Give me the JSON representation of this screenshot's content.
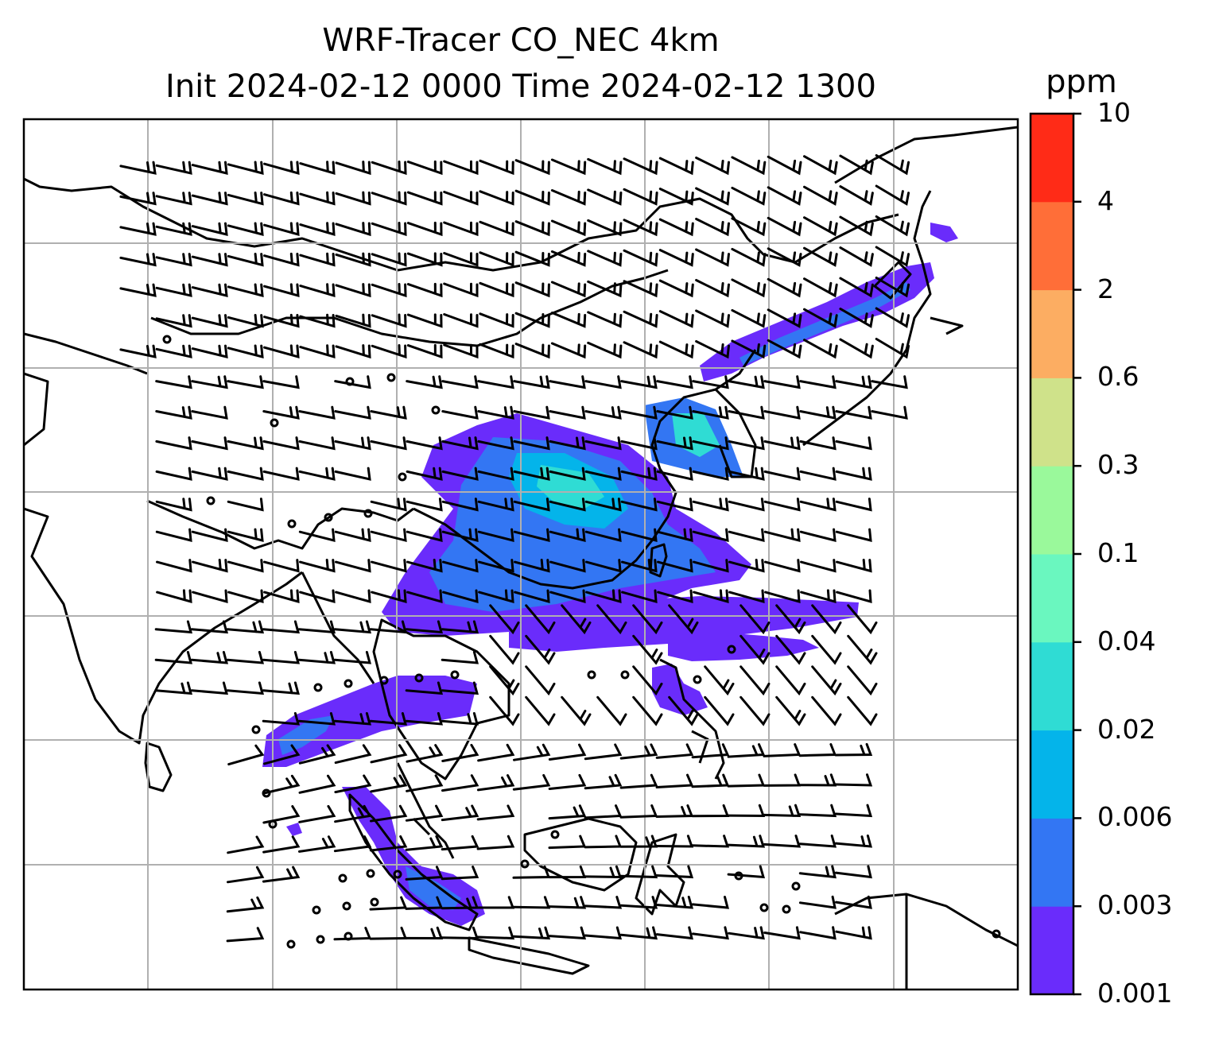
{
  "title": {
    "line1": "WRF-Tracer CO_NEC 4km",
    "line2": "Init 2024-02-12 0000 Time 2024-02-12 1300"
  },
  "colorbar": {
    "units": "ppm",
    "levels": [
      "0.001",
      "0.003",
      "0.006",
      "0.02",
      "0.04",
      "0.1",
      "0.3",
      "0.6",
      "2",
      "4",
      "10"
    ],
    "colors": [
      "#6a2cfb",
      "#3376f3",
      "#04b4ea",
      "#2fdcd4",
      "#6af7bf",
      "#9af99b",
      "#cfe28a",
      "#fcad62",
      "#ff6e38",
      "#ff2b17"
    ]
  },
  "map": {
    "field": "CO_NEC tracer concentration with wind barbs",
    "plume_color_low": "#6a2cfb",
    "plume_color_mid": "#3376f3",
    "plume_color_high": "#2fdcd4",
    "grid": true,
    "coastline_color": "#000000"
  }
}
